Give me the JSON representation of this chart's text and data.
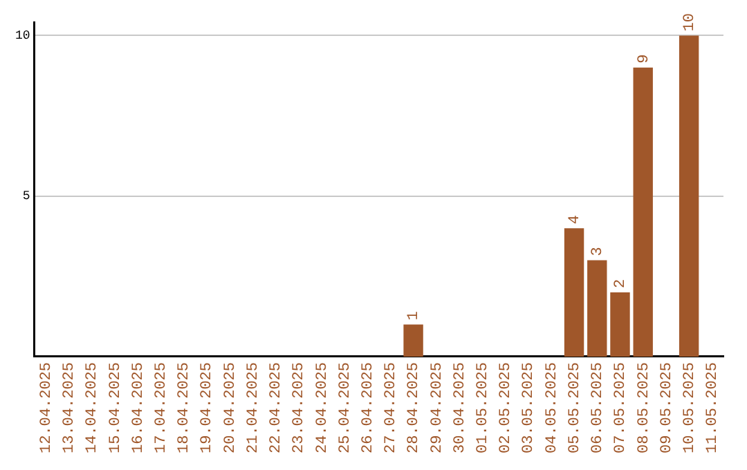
{
  "chart_data": {
    "type": "bar",
    "categories": [
      "12.04.2025",
      "13.04.2025",
      "14.04.2025",
      "15.04.2025",
      "16.04.2025",
      "17.04.2025",
      "18.04.2025",
      "19.04.2025",
      "20.04.2025",
      "21.04.2025",
      "22.04.2025",
      "23.04.2025",
      "24.04.2025",
      "25.04.2025",
      "26.04.2025",
      "27.04.2025",
      "28.04.2025",
      "29.04.2025",
      "30.04.2025",
      "01.05.2025",
      "02.05.2025",
      "03.05.2025",
      "04.05.2025",
      "05.05.2025",
      "06.05.2025",
      "07.05.2025",
      "08.05.2025",
      "09.05.2025",
      "10.05.2025",
      "11.05.2025"
    ],
    "values": [
      0,
      0,
      0,
      0,
      0,
      0,
      0,
      0,
      0,
      0,
      0,
      0,
      0,
      0,
      0,
      0,
      1,
      0,
      0,
      0,
      0,
      0,
      0,
      4,
      3,
      2,
      9,
      0,
      10,
      0
    ],
    "value_labels": [
      null,
      null,
      null,
      null,
      null,
      null,
      null,
      null,
      null,
      null,
      null,
      null,
      null,
      null,
      null,
      null,
      "1",
      null,
      null,
      null,
      null,
      null,
      null,
      "4",
      "3",
      "2",
      "9",
      null,
      "10",
      null
    ],
    "color": "#a0572a",
    "ylim": [
      0,
      10.4
    ],
    "yticks": [
      5,
      10
    ],
    "grid": "y"
  }
}
